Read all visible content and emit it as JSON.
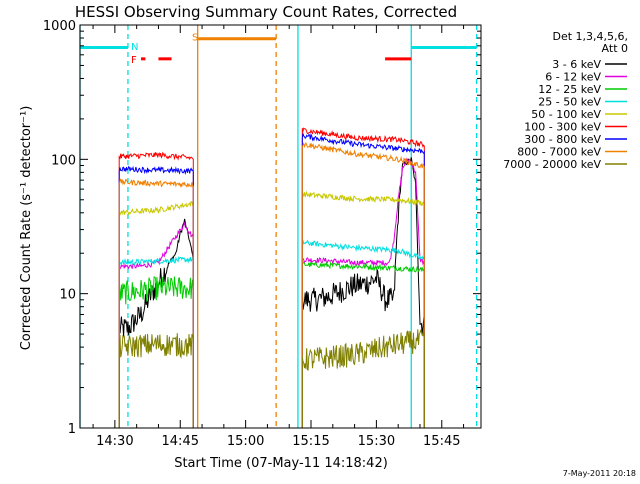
{
  "chart_data": {
    "type": "line",
    "title": "HESSI Observing Summary Count Rates, Corrected",
    "xlabel": "Start Time (07-May-11 14:18:42)",
    "ylabel": "Corrected Count Rate (s⁻¹ detector⁻¹)",
    "y_scale": "log",
    "ylim": [
      1,
      1000
    ],
    "xlim": [
      "14:22",
      "15:54"
    ],
    "x_ticks": [
      "14:30",
      "14:45",
      "15:00",
      "15:15",
      "15:30",
      "15:45"
    ],
    "y_ticks": [
      "1",
      "10",
      "100",
      "1000"
    ],
    "grid": false,
    "legend_title": [
      "Det 1,3,4,5,6,",
      "Att 0"
    ],
    "legend_position": "top-right",
    "timestamp_label": "7-May-2011 20:18",
    "series": [
      {
        "name": "3 - 6 keV",
        "color": "#000000",
        "segments": [
          {
            "x": [
              "14:31",
              "14:33",
              "14:36",
              "14:38",
              "14:40",
              "14:42",
              "14:44",
              "14:45",
              "14:46",
              "14:47",
              "14:48"
            ],
            "y": [
              5.5,
              5.5,
              7,
              9.5,
              12,
              16,
              20,
              28,
              35,
              26,
              18
            ]
          },
          {
            "x": [
              "15:13",
              "15:16",
              "15:19",
              "15:22",
              "15:25",
              "15:28",
              "15:30",
              "15:31",
              "15:32",
              "15:33",
              "15:34",
              "15:35",
              "15:36",
              "15:38",
              "15:39",
              "15:40",
              "15:41"
            ],
            "y": [
              9,
              9,
              9.5,
              10.5,
              11.5,
              12,
              13,
              11,
              9,
              9,
              9,
              40,
              90,
              100,
              65,
              6,
              6
            ]
          }
        ]
      },
      {
        "name": "6 - 12 keV",
        "color": "#e000e0",
        "segments": [
          {
            "x": [
              "14:31",
              "14:36",
              "14:40",
              "14:43",
              "14:46",
              "14:48"
            ],
            "y": [
              16,
              16,
              17,
              24,
              33,
              26
            ]
          },
          {
            "x": [
              "15:13",
              "15:20",
              "15:25",
              "15:30",
              "15:33",
              "15:34",
              "15:35",
              "15:36",
              "15:37",
              "15:38",
              "15:39",
              "15:40",
              "15:41"
            ],
            "y": [
              18,
              17.5,
              17,
              17,
              17,
              25,
              50,
              85,
              100,
              95,
              80,
              18,
              17
            ]
          }
        ]
      },
      {
        "name": "12 - 25 keV",
        "color": "#00cc00",
        "segments": [
          {
            "x": [
              "14:31",
              "14:40",
              "14:48"
            ],
            "y": [
              10,
              11,
              11
            ]
          },
          {
            "x": [
              "15:13",
              "15:25",
              "15:35",
              "15:41"
            ],
            "y": [
              16.5,
              16,
              15.5,
              15
            ]
          }
        ]
      },
      {
        "name": "25 - 50 keV",
        "color": "#00e0e0",
        "segments": [
          {
            "x": [
              "14:31",
              "14:40",
              "14:48"
            ],
            "y": [
              17,
              17.5,
              18
            ]
          },
          {
            "x": [
              "15:13",
              "15:25",
              "15:35",
              "15:41"
            ],
            "y": [
              24,
              22,
              21,
              18
            ]
          }
        ]
      },
      {
        "name": "50 - 100 keV",
        "color": "#c8c800",
        "segments": [
          {
            "x": [
              "14:31",
              "14:40",
              "14:48"
            ],
            "y": [
              40,
              42,
              47
            ]
          },
          {
            "x": [
              "15:13",
              "15:25",
              "15:35",
              "15:41"
            ],
            "y": [
              55,
              51,
              50,
              47
            ]
          }
        ]
      },
      {
        "name": "100 - 300 keV",
        "color": "#ff0000",
        "segments": [
          {
            "x": [
              "14:31",
              "14:40",
              "14:48"
            ],
            "y": [
              105,
              108,
              102
            ]
          },
          {
            "x": [
              "15:13",
              "15:25",
              "15:35",
              "15:41"
            ],
            "y": [
              165,
              145,
              140,
              128
            ]
          }
        ]
      },
      {
        "name": "300 - 800 keV",
        "color": "#0000ff",
        "segments": [
          {
            "x": [
              "14:31",
              "14:40",
              "14:48"
            ],
            "y": [
              85,
              83,
              82
            ]
          },
          {
            "x": [
              "15:13",
              "15:25",
              "15:35",
              "15:41"
            ],
            "y": [
              150,
              130,
              120,
              115
            ]
          }
        ]
      },
      {
        "name": "800 - 7000 keV",
        "color": "#f08000",
        "segments": [
          {
            "x": [
              "14:31",
              "14:40",
              "14:48"
            ],
            "y": [
              68,
              66,
              65
            ]
          },
          {
            "x": [
              "15:13",
              "15:25",
              "15:35",
              "15:41"
            ],
            "y": [
              130,
              110,
              100,
              88
            ]
          }
        ]
      },
      {
        "name": "7000 - 20000 keV",
        "color": "#808000",
        "segments": [
          {
            "x": [
              "14:31",
              "14:40",
              "14:48"
            ],
            "y": [
              4,
              4.2,
              4.1
            ]
          },
          {
            "x": [
              "15:13",
              "15:25",
              "15:35",
              "15:41"
            ],
            "y": [
              3.2,
              3.5,
              4.2,
              4.5
            ]
          }
        ]
      }
    ],
    "vertical_lines": [
      {
        "x": "14:22",
        "color": "#00e0e0",
        "style": "solid"
      },
      {
        "x": "14:33",
        "color": "#00e0e0",
        "style": "dashed"
      },
      {
        "x": "14:49",
        "color": "#f08000",
        "style": "solid"
      },
      {
        "x": "15:07",
        "color": "#f08000",
        "style": "dashed"
      },
      {
        "x": "15:12",
        "color": "#00e0e0",
        "style": "solid"
      },
      {
        "x": "15:38",
        "color": "#00e0e0",
        "style": "solid"
      },
      {
        "x": "15:53",
        "color": "#00e0e0",
        "style": "dashed"
      }
    ],
    "status_bars": [
      {
        "x0": "14:22",
        "x1": "14:33",
        "y": 680,
        "color": "#00e0e0"
      },
      {
        "x0": "15:38",
        "x1": "15:53",
        "y": 680,
        "color": "#00e0e0"
      },
      {
        "x0": "14:49",
        "x1": "15:07",
        "y": 790,
        "color": "#f08000"
      },
      {
        "x0": "14:36",
        "x1": "14:37",
        "y": 560,
        "color": "#ff0000"
      },
      {
        "x0": "14:40",
        "x1": "14:43",
        "y": 560,
        "color": "#ff0000"
      },
      {
        "x0": "15:32",
        "x1": "15:38",
        "y": 560,
        "color": "#ff0000"
      }
    ],
    "flags": [
      {
        "label": "N",
        "x": "14:33",
        "y": 700,
        "color": "#00e0e0"
      },
      {
        "label": "F",
        "x": "14:33",
        "y": 560,
        "color": "#ff0000"
      },
      {
        "label": "S",
        "x": "14:47",
        "y": 820,
        "color": "#f08000"
      }
    ]
  }
}
